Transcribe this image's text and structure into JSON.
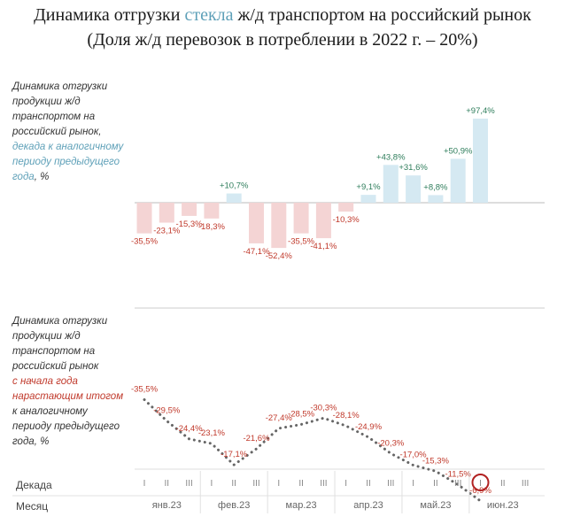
{
  "title": {
    "line1_before": "Динамика отгрузки ",
    "line1_highlight": "стекла",
    "line1_after": " ж/д транспортом на российский рынок",
    "line2": "(Доля ж/д перевозок в потреблении в 2022 г. – 20%)"
  },
  "top_panel": {
    "desc_plain": "Динамика отгрузки\nпродукции ж/д\nтранспортом на\nроссийский рынок,",
    "desc_highlight": "декада к аналогичному\nпериоду предыдущего\nгода",
    "desc_suffix": ", %"
  },
  "bottom_panel": {
    "desc_plain": "Динамика отгрузки\nпродукции ж/д\nтранспортом на\nроссийский рынок",
    "desc_highlight": "с начала года\nнарастающим итогом",
    "desc_suffix": "к аналогичному\nпериоду предыдущего\nгода, %"
  },
  "axis": {
    "decade_row_label": "Декада",
    "month_row_label": "Месяц",
    "decades": [
      "I",
      "II",
      "III",
      "I",
      "II",
      "III",
      "I",
      "II",
      "III",
      "I",
      "II",
      "III",
      "I",
      "II",
      "III",
      "I",
      "II",
      "III"
    ],
    "months": [
      "янв.23",
      "фев.23",
      "мар.23",
      "апр.23",
      "май.23",
      "июн.23"
    ],
    "current_decade_index": 15
  },
  "chart_data": [
    {
      "type": "bar",
      "categories": [
        "янв.23 I",
        "янв.23 II",
        "янв.23 III",
        "фев.23 I",
        "фев.23 II",
        "фев.23 III",
        "мар.23 I",
        "мар.23 II",
        "мар.23 III",
        "апр.23 I",
        "апр.23 II",
        "апр.23 III",
        "май.23 I",
        "май.23 II",
        "май.23 III",
        "июн.23 I"
      ],
      "values": [
        -35.5,
        -23.1,
        -15.3,
        -18.3,
        10.7,
        -47.1,
        -52.4,
        -35.5,
        -41.1,
        -10.3,
        9.1,
        43.8,
        31.6,
        8.8,
        50.9,
        97.4
      ],
      "labels": [
        "-35,5%",
        "-23,1%",
        "-15,3%",
        "-18,3%",
        "+10,7%",
        "-47,1%",
        "-52,4%",
        "-35,5%",
        "-41,1%",
        "-10,3%",
        "+9,1%",
        "+43,8%",
        "+31,6%",
        "+8,8%",
        "+50,9%",
        "+97,4%"
      ],
      "colors": {
        "positive": "#d5e9f2",
        "negative": "#f4d4d4",
        "positive_label": "#2e7d5b",
        "negative_label": "#c0392b"
      }
    },
    {
      "type": "line",
      "categories": [
        "янв.23 I",
        "янв.23 II",
        "янв.23 III",
        "фев.23 I",
        "фев.23 II",
        "фев.23 III",
        "мар.23 I",
        "мар.23 II",
        "мар.23 III",
        "апр.23 I",
        "апр.23 II",
        "апр.23 III",
        "май.23 I",
        "май.23 II",
        "май.23 III",
        "июн.23 I"
      ],
      "values": [
        -35.5,
        -29.5,
        -24.4,
        -23.1,
        -17.1,
        -21.6,
        -27.4,
        -28.5,
        -30.3,
        -28.1,
        -24.9,
        -20.3,
        -17.0,
        -15.3,
        -11.5,
        -6.9
      ],
      "labels": [
        "-35,5%",
        "-29,5%",
        "-24,4%",
        "-23,1%",
        "-17,1%",
        "-21,6%",
        "-27,4%",
        "-28,5%",
        "-30,3%",
        "-28,1%",
        "-24,9%",
        "-20,3%",
        "-17,0%",
        "-15,3%",
        "-11,5%",
        "-6,9%"
      ],
      "colors": {
        "line": "#666666",
        "label": "#c0392b"
      }
    }
  ]
}
